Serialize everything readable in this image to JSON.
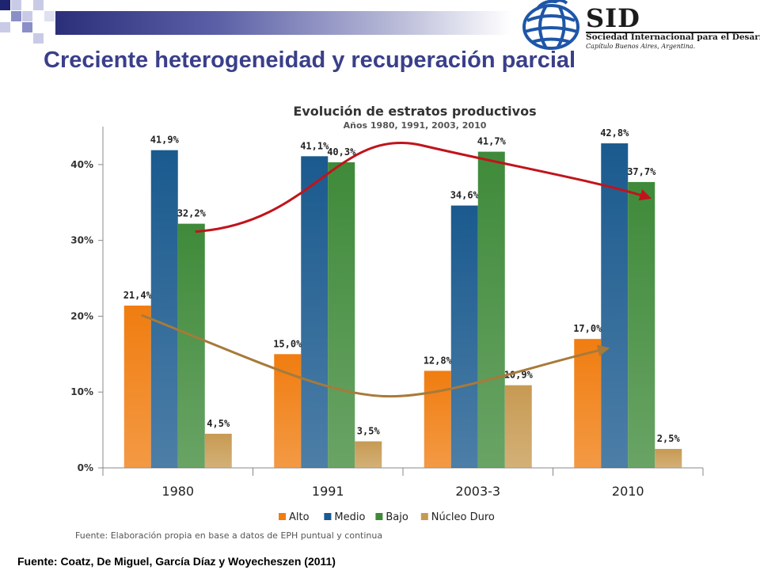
{
  "slide": {
    "title": "Creciente heterogeneidad y recuperación parcial",
    "footer": "Fuente: Coatz, De Miguel, García Díaz y Woyecheszen (2011)"
  },
  "logo": {
    "name": "SID",
    "line1": "Sociedad Internacional para el Desarrollo",
    "line2": "Capítulo Buenos Aires, Argentina."
  },
  "chart_data": {
    "type": "bar",
    "title": "Evolución de estratos productivos",
    "subtitle": "Años 1980, 1991, 2003, 2010",
    "categories": [
      "1980",
      "1991",
      "2003-3",
      "2010"
    ],
    "series": [
      {
        "name": "Alto",
        "values": [
          21.4,
          15.0,
          12.8,
          17.0
        ],
        "labels": [
          "21,4%",
          "15,0%",
          "12,8%",
          "17,0%"
        ],
        "color": "#f07d10"
      },
      {
        "name": "Medio",
        "values": [
          41.9,
          41.1,
          34.6,
          42.8
        ],
        "labels": [
          "41,9%",
          "41,1%",
          "34,6%",
          "42,8%"
        ],
        "color": "#1a5a8e"
      },
      {
        "name": "Bajo",
        "values": [
          32.2,
          40.3,
          41.7,
          37.7
        ],
        "labels": [
          "32,2%",
          "40,3%",
          "41,7%",
          "37,7%"
        ],
        "color": "#3f8a3a"
      },
      {
        "name": "Núcleo Duro",
        "values": [
          4.5,
          3.5,
          10.9,
          2.5
        ],
        "labels": [
          "4,5%",
          "3,5%",
          "10,9%",
          "2,5%"
        ],
        "color": "#c79a52"
      }
    ],
    "yticks": [
      0,
      10,
      20,
      30,
      40
    ],
    "ytick_labels": [
      "0%",
      "10%",
      "20%",
      "30%",
      "40%"
    ],
    "ylim": [
      0,
      45
    ],
    "legend_position": "bottom",
    "source_note": "Fuente: Elaboración propia en base a datos de EPH puntual y continua",
    "trend_arrows": [
      {
        "name": "bajo-trend",
        "color": "#c0141c"
      },
      {
        "name": "alto-trend",
        "color": "#a77a3a"
      }
    ]
  }
}
